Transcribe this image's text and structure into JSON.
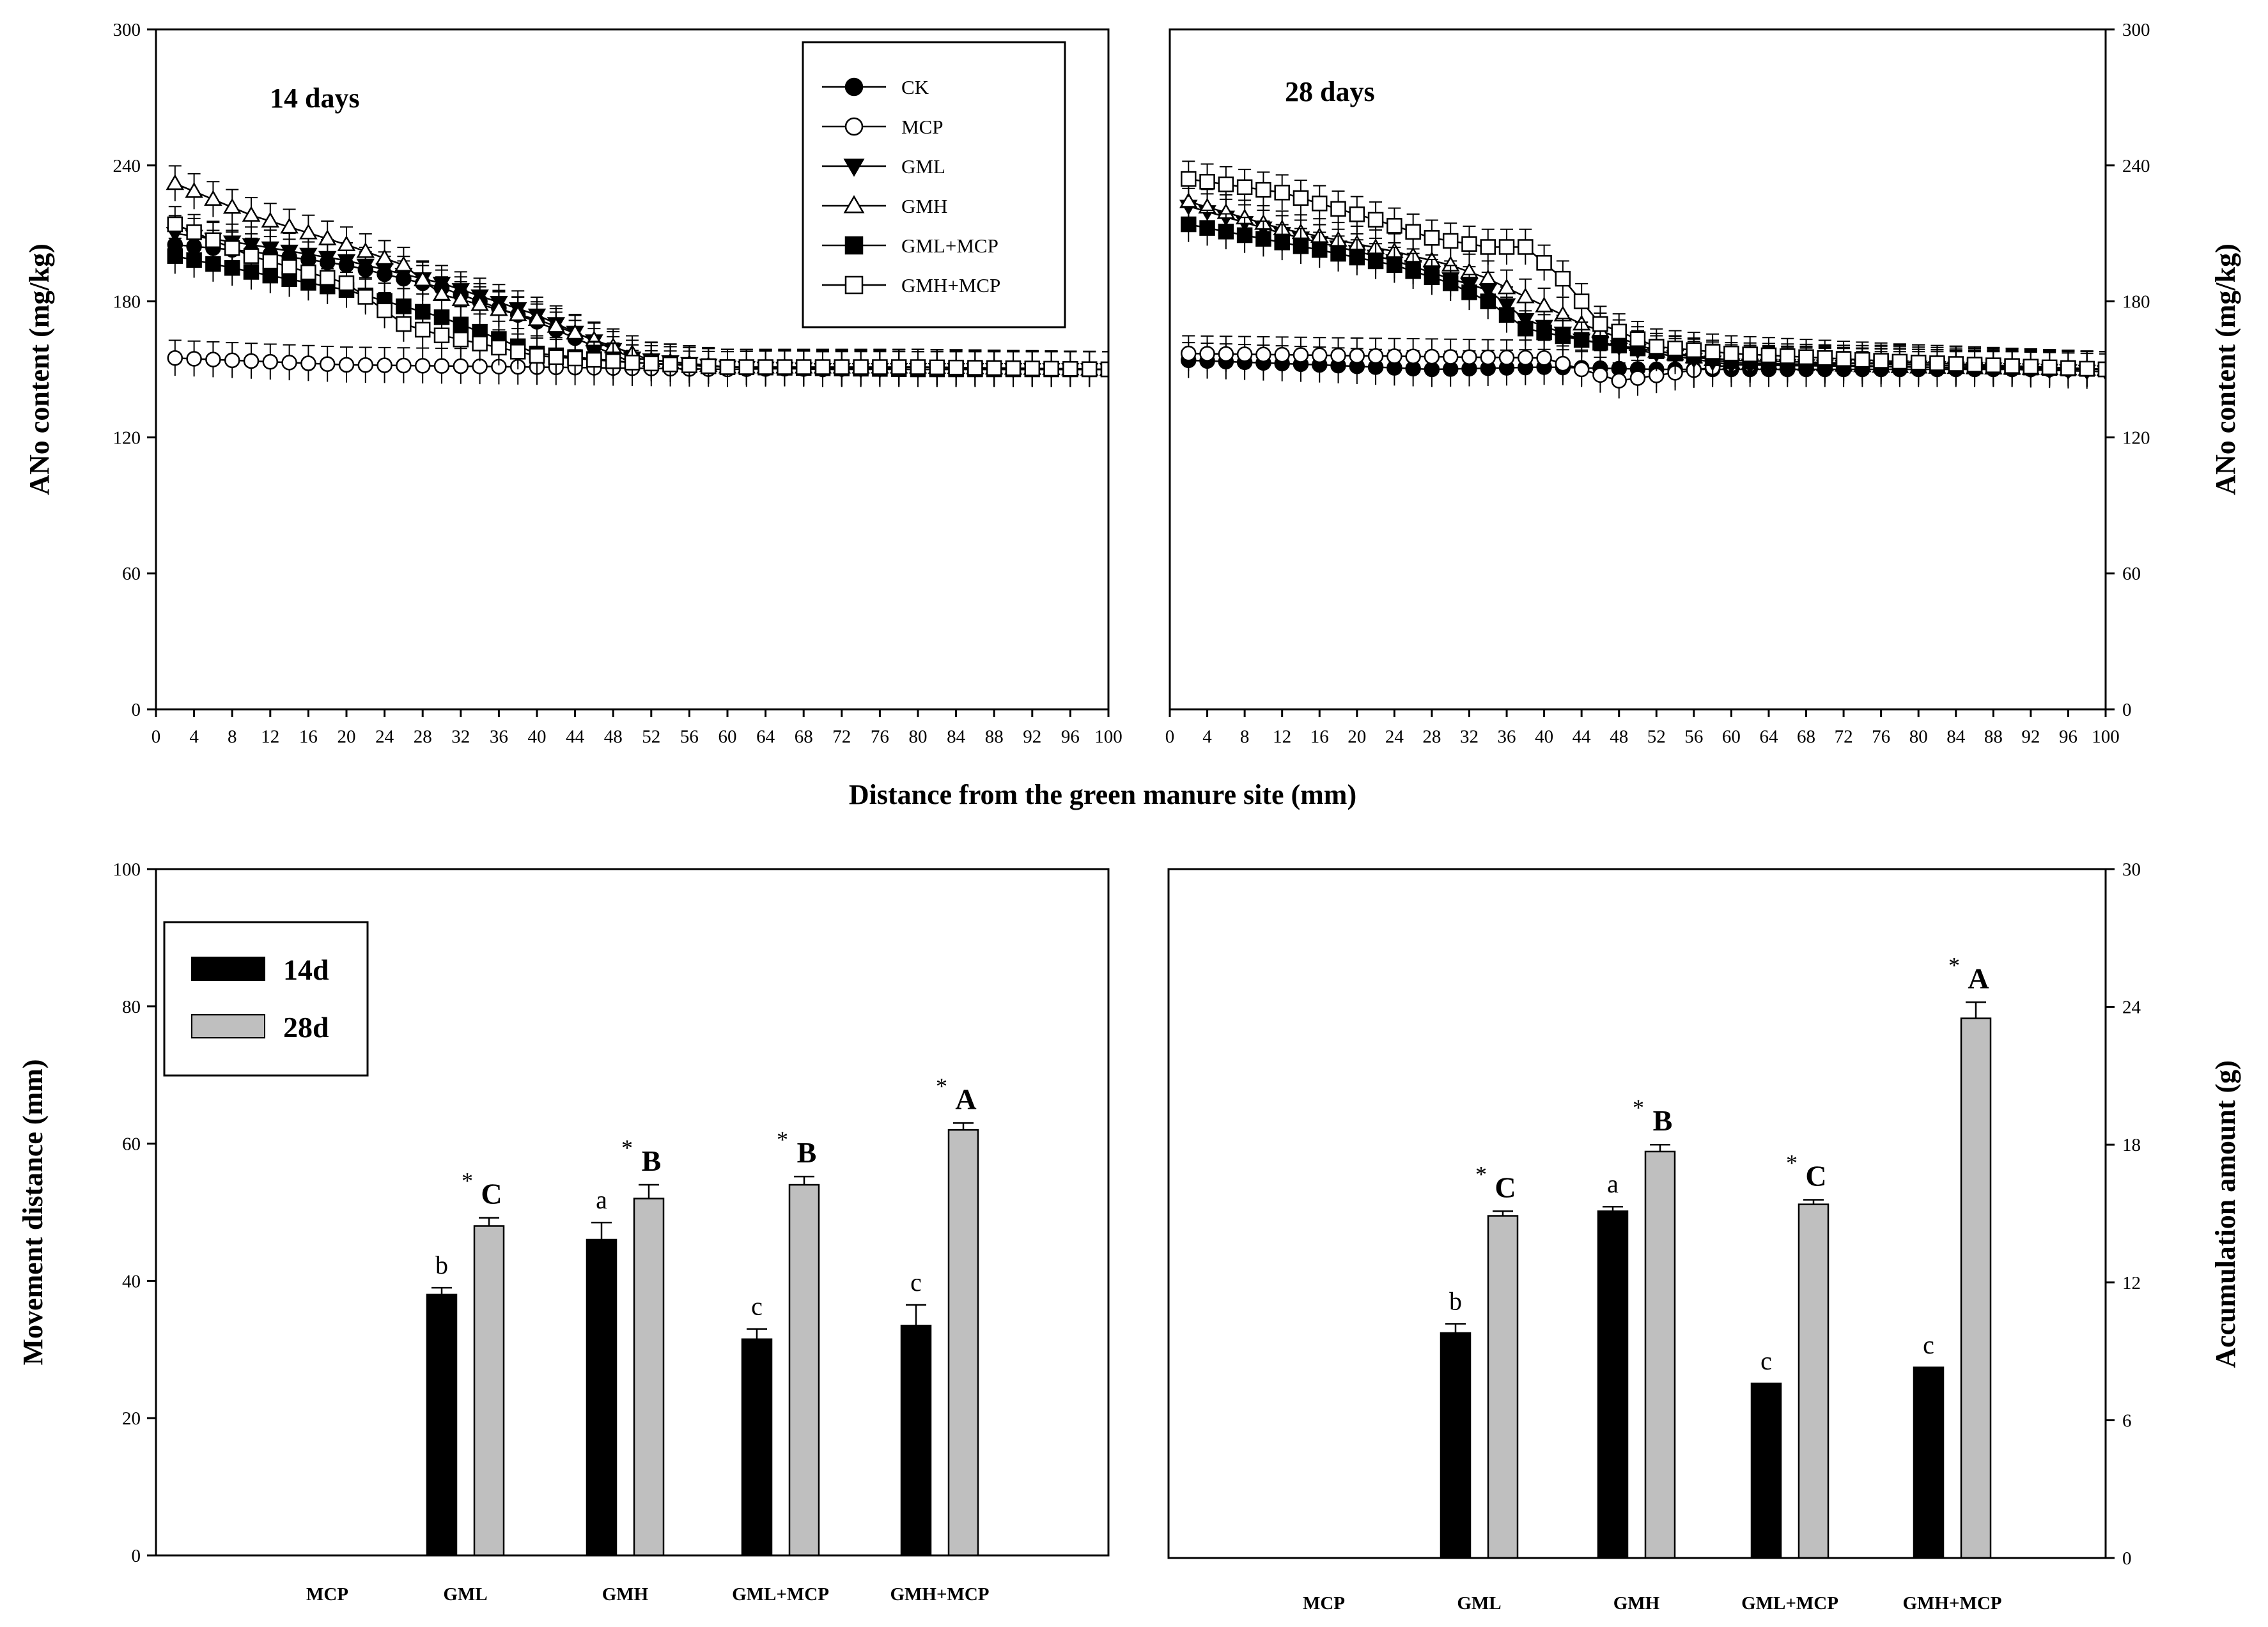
{
  "chart_data": [
    {
      "type": "line",
      "panel": "top-left",
      "title": "14 days",
      "xlabel": "Distance from the green manure site (mm)",
      "ylabel": "ANo content (mg/kg)",
      "xlim": [
        0,
        100
      ],
      "ylim": [
        0,
        300
      ],
      "xticks": [
        "0",
        "4",
        "8",
        "12",
        "16",
        "20",
        "24",
        "28",
        "32",
        "36",
        "40",
        "44",
        "48",
        "52",
        "56",
        "60",
        "64",
        "68",
        "72",
        "76",
        "80",
        "84",
        "88",
        "92",
        "96",
        "100"
      ],
      "yticks": [
        "0",
        "60",
        "120",
        "180",
        "240",
        "300"
      ],
      "legend_position": "top-right",
      "error": 5,
      "series": [
        {
          "name": "CK",
          "marker": "filled-circle",
          "key": [
            [
              2,
              205
            ],
            [
              10,
              202
            ],
            [
              20,
              196
            ],
            [
              30,
              186
            ],
            [
              40,
              171
            ],
            [
              50,
              153
            ],
            [
              60,
              151
            ],
            [
              70,
              150
            ],
            [
              80,
              151
            ],
            [
              90,
              150
            ],
            [
              100,
              150
            ]
          ]
        },
        {
          "name": "MCP",
          "marker": "open-circle",
          "key": [
            [
              2,
              155
            ],
            [
              20,
              152
            ],
            [
              40,
              151
            ],
            [
              60,
              150
            ],
            [
              80,
              151
            ],
            [
              100,
              150
            ]
          ]
        },
        {
          "name": "GML",
          "marker": "filled-triangle",
          "key": [
            [
              2,
              210
            ],
            [
              10,
              205
            ],
            [
              20,
              198
            ],
            [
              30,
              188
            ],
            [
              40,
              174
            ],
            [
              50,
              155
            ],
            [
              60,
              151
            ],
            [
              70,
              150
            ],
            [
              80,
              150
            ],
            [
              90,
              150
            ],
            [
              100,
              150
            ]
          ]
        },
        {
          "name": "GMH",
          "marker": "open-triangle",
          "key": [
            [
              2,
              232
            ],
            [
              10,
              218
            ],
            [
              20,
              205
            ],
            [
              26,
              196
            ],
            [
              30,
              183
            ],
            [
              40,
              172
            ],
            [
              48,
              160
            ],
            [
              52,
              154
            ],
            [
              60,
              151
            ],
            [
              80,
              151
            ],
            [
              100,
              150
            ]
          ]
        },
        {
          "name": "GML+MCP",
          "marker": "filled-square",
          "key": [
            [
              2,
              200
            ],
            [
              10,
              193
            ],
            [
              20,
              185
            ],
            [
              30,
              173
            ],
            [
              40,
              157
            ],
            [
              50,
              153
            ],
            [
              60,
              151
            ],
            [
              80,
              150
            ],
            [
              100,
              150
            ]
          ]
        },
        {
          "name": "GMH+MCP",
          "marker": "open-square",
          "key": [
            [
              2,
              214
            ],
            [
              10,
              200
            ],
            [
              20,
              188
            ],
            [
              26,
              170
            ],
            [
              30,
              165
            ],
            [
              40,
              156
            ],
            [
              50,
              153
            ],
            [
              60,
              151
            ],
            [
              80,
              151
            ],
            [
              100,
              150
            ]
          ]
        }
      ]
    },
    {
      "type": "line",
      "panel": "top-right",
      "title": "28 days",
      "xlabel": "Distance from the green manure site (mm)",
      "ylabel": "ANo content (mg/kg)",
      "xlim": [
        0,
        100
      ],
      "ylim": [
        0,
        300
      ],
      "xticks": [
        "0",
        "4",
        "8",
        "12",
        "16",
        "20",
        "24",
        "28",
        "32",
        "36",
        "40",
        "44",
        "48",
        "52",
        "56",
        "60",
        "64",
        "68",
        "72",
        "76",
        "80",
        "84",
        "88",
        "92",
        "96",
        "100"
      ],
      "yticks": [
        "0",
        "60",
        "120",
        "180",
        "240",
        "300"
      ],
      "error": 5,
      "series": [
        {
          "name": "CK",
          "marker": "filled-circle",
          "key": [
            [
              2,
              154
            ],
            [
              16,
              152
            ],
            [
              28,
              150
            ],
            [
              40,
              151
            ],
            [
              52,
              150
            ],
            [
              70,
              150
            ],
            [
              100,
              150
            ]
          ]
        },
        {
          "name": "MCP",
          "marker": "open-circle",
          "key": [
            [
              2,
              157
            ],
            [
              20,
              156
            ],
            [
              40,
              155
            ],
            [
              48,
              145
            ],
            [
              60,
              152
            ],
            [
              80,
              153
            ],
            [
              100,
              150
            ]
          ]
        },
        {
          "name": "GML",
          "marker": "filled-triangle",
          "key": [
            [
              2,
              222
            ],
            [
              12,
              210
            ],
            [
              24,
              198
            ],
            [
              30,
              190
            ],
            [
              34,
              185
            ],
            [
              38,
              172
            ],
            [
              44,
              163
            ],
            [
              52,
              157
            ],
            [
              60,
              152
            ],
            [
              80,
              151
            ],
            [
              100,
              149
            ]
          ]
        },
        {
          "name": "GMH",
          "marker": "open-triangle",
          "key": [
            [
              2,
              224
            ],
            [
              12,
              212
            ],
            [
              24,
              202
            ],
            [
              30,
              196
            ],
            [
              34,
              190
            ],
            [
              38,
              182
            ],
            [
              44,
              170
            ],
            [
              52,
              158
            ],
            [
              60,
              153
            ],
            [
              80,
              151
            ],
            [
              100,
              150
            ]
          ]
        },
        {
          "name": "GML+MCP",
          "marker": "filled-square",
          "key": [
            [
              2,
              214
            ],
            [
              12,
              206
            ],
            [
              24,
              196
            ],
            [
              30,
              188
            ],
            [
              34,
              180
            ],
            [
              38,
              168
            ],
            [
              44,
              163
            ],
            [
              52,
              158
            ],
            [
              60,
              154
            ],
            [
              80,
              152
            ],
            [
              100,
              150
            ]
          ]
        },
        {
          "name": "GMH+MCP",
          "marker": "open-square",
          "key": [
            [
              2,
              234
            ],
            [
              12,
              228
            ],
            [
              22,
              216
            ],
            [
              28,
              208
            ],
            [
              34,
              204
            ],
            [
              38,
              204
            ],
            [
              42,
              190
            ],
            [
              46,
              170
            ],
            [
              52,
              160
            ],
            [
              60,
              157
            ],
            [
              80,
              153
            ],
            [
              100,
              150
            ]
          ]
        }
      ]
    },
    {
      "type": "bar",
      "panel": "bottom-left",
      "ylabel": "Movement distance (mm)",
      "ylim": [
        0,
        100
      ],
      "yticks": [
        "0",
        "20",
        "40",
        "60",
        "80",
        "100"
      ],
      "categories": [
        "MCP",
        "GML",
        "GMH",
        "GML+MCP",
        "GMH+MCP"
      ],
      "legend_position": "top-left",
      "series": [
        {
          "name": "14d",
          "color": "#000000",
          "values": [
            0,
            38,
            46,
            31.5,
            33.5
          ],
          "errors": [
            0,
            1,
            2.5,
            1.5,
            3
          ],
          "letters": [
            "",
            "b",
            "a",
            "c",
            "c"
          ]
        },
        {
          "name": "28d",
          "color": "#bfbfbf",
          "values": [
            0,
            48,
            52,
            54,
            62
          ],
          "errors": [
            0,
            1.2,
            2,
            1.2,
            1
          ],
          "letters": [
            "",
            "C",
            "B",
            "B",
            "A"
          ],
          "stars": [
            "",
            "*",
            "*",
            "*",
            "*"
          ]
        }
      ]
    },
    {
      "type": "bar",
      "panel": "bottom-right",
      "ylabel": "Accumulation amount (g)",
      "ylim": [
        0,
        30
      ],
      "yticks": [
        "0",
        "6",
        "12",
        "18",
        "24",
        "30"
      ],
      "categories": [
        "MCP",
        "GML",
        "GMH",
        "GML+MCP",
        "GMH+MCP"
      ],
      "series": [
        {
          "name": "14d",
          "color": "#000000",
          "values": [
            0,
            9.8,
            15.1,
            7.6,
            8.3
          ],
          "errors": [
            0,
            0.4,
            0.2,
            0,
            0
          ],
          "letters": [
            "",
            "b",
            "a",
            "c",
            "c"
          ]
        },
        {
          "name": "28d",
          "color": "#bfbfbf",
          "values": [
            0,
            14.9,
            17.7,
            15.4,
            23.5
          ],
          "errors": [
            0,
            0.2,
            0.3,
            0.2,
            0.7
          ],
          "letters": [
            "",
            "C",
            "B",
            "C",
            "A"
          ],
          "stars": [
            "",
            "*",
            "*",
            "*",
            "*"
          ]
        }
      ]
    }
  ]
}
